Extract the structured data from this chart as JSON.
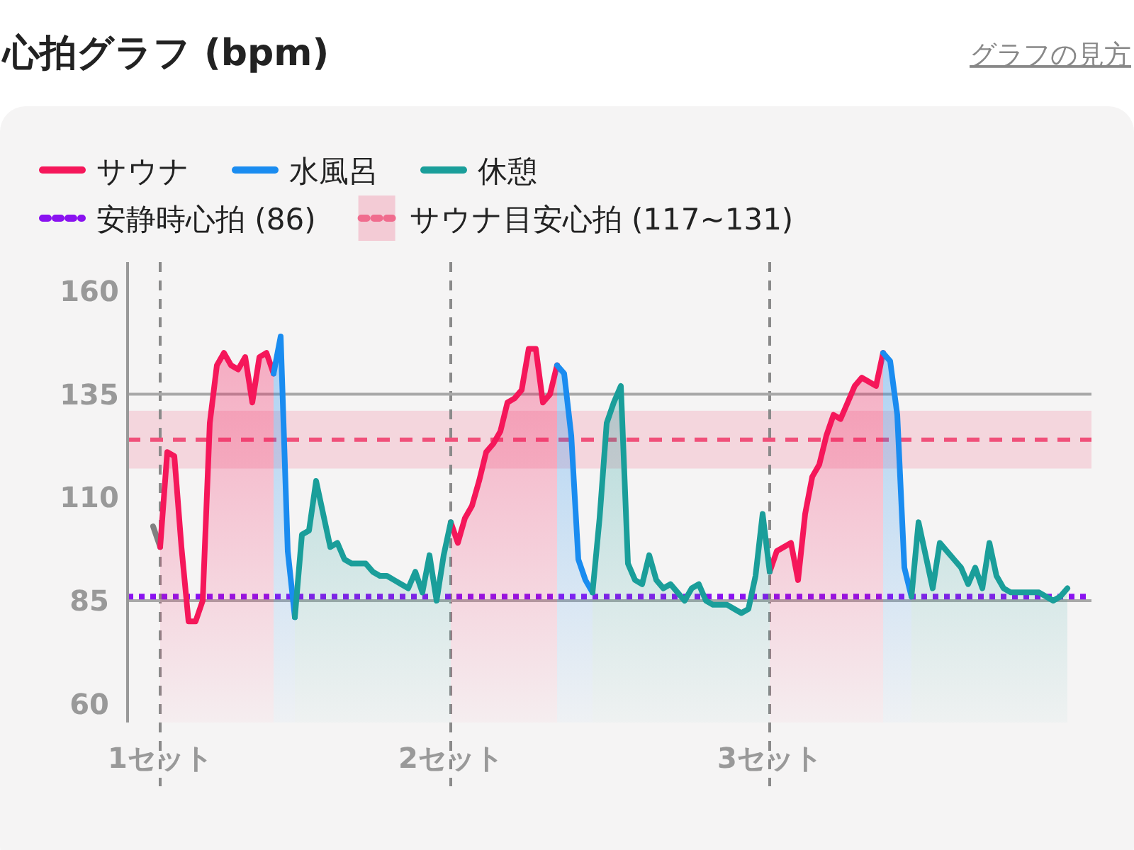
{
  "chart_data": {
    "type": "area",
    "title": "心拍グラフ (bpm)",
    "annotations": [
      "グラフの見方"
    ],
    "categories": [
      null,
      "1セット",
      null,
      null,
      null,
      null,
      null,
      null,
      null,
      null,
      null,
      null,
      null,
      null,
      null,
      null,
      null,
      null,
      null,
      null,
      null,
      null,
      null,
      null,
      null,
      null,
      null,
      null,
      null,
      null,
      null,
      null,
      null,
      null,
      null,
      null,
      null,
      null,
      null,
      null,
      null,
      null,
      "2セット",
      null,
      null,
      null,
      null,
      null,
      null,
      null,
      null,
      null,
      null,
      null,
      null,
      null,
      null,
      null,
      null,
      null,
      null,
      null,
      null,
      null,
      null,
      null,
      null,
      null,
      null,
      null,
      null,
      null,
      null,
      null,
      null,
      null,
      null,
      null,
      null,
      null,
      null,
      null,
      null,
      null,
      null,
      null,
      null,
      "3セット",
      null,
      null,
      null,
      null,
      null,
      null,
      null,
      null,
      null,
      null,
      null,
      null,
      null,
      null,
      null,
      null,
      null,
      null,
      null,
      null,
      null,
      null,
      null,
      null,
      null,
      null,
      null,
      null,
      null,
      null,
      null,
      null,
      null,
      null,
      null,
      null,
      null,
      null,
      null,
      null,
      null,
      null
    ],
    "series": [
      {
        "type": "line",
        "color": "#808080",
        "values": [
          103,
          98,
          null,
          null,
          null,
          null,
          null,
          null,
          null,
          null,
          null,
          null,
          null,
          null,
          null,
          null,
          null,
          null,
          null,
          null,
          null,
          null,
          null,
          null,
          null,
          null,
          null,
          null,
          null,
          null,
          null,
          null,
          null,
          null,
          null,
          null,
          null,
          null,
          null,
          null,
          null,
          null,
          null,
          null,
          null,
          null,
          null,
          null,
          null,
          null,
          null,
          null,
          null,
          null,
          null,
          null,
          null,
          null,
          null,
          null,
          null,
          null,
          null,
          null,
          null,
          null,
          null,
          null,
          null,
          null,
          null,
          null,
          null,
          null,
          null,
          null,
          null,
          null,
          null,
          null,
          null,
          null,
          null,
          null,
          null,
          null,
          null,
          null,
          null,
          null,
          null,
          null,
          null,
          null,
          null,
          null,
          null,
          null,
          null,
          null,
          null,
          null,
          null,
          null,
          null,
          null,
          null,
          null,
          null,
          null,
          null,
          null,
          null,
          null,
          null,
          null,
          null,
          null,
          null,
          null,
          null,
          null,
          null,
          null,
          null,
          null,
          null,
          null,
          null,
          null
        ]
      },
      {
        "name": "サウナ",
        "color": "#f5175a",
        "values": [
          null,
          98,
          121,
          120,
          98,
          80,
          80,
          85,
          128,
          142,
          145,
          142,
          141,
          144,
          133,
          144,
          145,
          140,
          null,
          null,
          null,
          null,
          null,
          null,
          null,
          null,
          null,
          null,
          null,
          null,
          null,
          null,
          null,
          null,
          null,
          null,
          null,
          null,
          null,
          null,
          null,
          null,
          104,
          99,
          105,
          108,
          114,
          121,
          123,
          126,
          133,
          134,
          136,
          146,
          146,
          133,
          135,
          142,
          null,
          null,
          null,
          null,
          null,
          null,
          null,
          null,
          null,
          null,
          null,
          null,
          null,
          null,
          null,
          null,
          null,
          null,
          null,
          null,
          null,
          null,
          null,
          null,
          null,
          null,
          null,
          null,
          null,
          92,
          97,
          98,
          99,
          90,
          106,
          115,
          118,
          125,
          130,
          129,
          133,
          137,
          139,
          138,
          137,
          145,
          null,
          null,
          null,
          null,
          null,
          null,
          null,
          null,
          null,
          null,
          null,
          null,
          null,
          null,
          null,
          null,
          null,
          null,
          null,
          null,
          null,
          null,
          null,
          null,
          null,
          null
        ]
      },
      {
        "name": "水風呂",
        "color": "#1a8cf0",
        "values": [
          null,
          null,
          null,
          null,
          null,
          null,
          null,
          null,
          null,
          null,
          null,
          null,
          null,
          null,
          null,
          null,
          null,
          140,
          149,
          97,
          81,
          null,
          null,
          null,
          null,
          null,
          null,
          null,
          null,
          null,
          null,
          null,
          null,
          null,
          null,
          null,
          null,
          null,
          null,
          null,
          null,
          null,
          null,
          null,
          null,
          null,
          null,
          null,
          null,
          null,
          null,
          null,
          null,
          null,
          null,
          null,
          null,
          142,
          140,
          125,
          95,
          90,
          87,
          null,
          null,
          null,
          null,
          null,
          null,
          null,
          null,
          null,
          null,
          null,
          null,
          null,
          null,
          null,
          null,
          null,
          null,
          null,
          null,
          null,
          null,
          null,
          null,
          null,
          null,
          null,
          null,
          null,
          null,
          null,
          null,
          null,
          null,
          null,
          null,
          null,
          null,
          null,
          null,
          145,
          143,
          130,
          93,
          86,
          null,
          null,
          null,
          null,
          null,
          null,
          null,
          null,
          null,
          null,
          null,
          null,
          null,
          null,
          null,
          null,
          null,
          null,
          null,
          null,
          null,
          null
        ]
      },
      {
        "name": "休憩",
        "color": "#1a9e9a",
        "values": [
          null,
          null,
          null,
          null,
          null,
          null,
          null,
          null,
          null,
          null,
          null,
          null,
          null,
          null,
          null,
          null,
          null,
          null,
          null,
          null,
          81,
          101,
          102,
          114,
          106,
          98,
          99,
          95,
          94,
          94,
          94,
          92,
          91,
          91,
          90,
          89,
          88,
          92,
          87,
          96,
          85,
          96,
          104,
          null,
          null,
          null,
          null,
          null,
          null,
          null,
          null,
          null,
          null,
          null,
          null,
          null,
          null,
          null,
          null,
          null,
          null,
          null,
          87,
          105,
          128,
          133,
          137,
          94,
          90,
          89,
          96,
          90,
          88,
          89,
          87,
          85,
          88,
          89,
          85,
          84,
          84,
          84,
          83,
          82,
          83,
          91,
          106,
          92,
          null,
          null,
          null,
          null,
          null,
          null,
          null,
          null,
          null,
          null,
          null,
          null,
          null,
          null,
          null,
          null,
          null,
          null,
          null,
          86,
          104,
          96,
          88,
          99,
          97,
          95,
          93,
          89,
          93,
          88,
          99,
          91,
          88,
          87,
          87,
          87,
          87,
          87,
          86,
          85,
          86,
          88
        ]
      }
    ],
    "ylim": [
      55.5,
      167
    ],
    "yticks": [
      60,
      85,
      110,
      135,
      160
    ],
    "grid": "x",
    "legend": "top left",
    "ref_lines": [
      {
        "axis": "y",
        "value": 135,
        "color": "#a8a8a8",
        "line_style": "solid"
      },
      {
        "axis": "y",
        "value": 85,
        "color": "#a8a8a8",
        "line_style": "solid"
      },
      {
        "axis": "y",
        "value": 124,
        "color": "#f0507a",
        "line_style": "dashed"
      },
      {
        "axis": "y",
        "value": 86,
        "label": "安静時心拍 (86)",
        "color": "#8a12f0",
        "line_style": "dotted"
      }
    ],
    "bands": [
      {
        "axis": "y",
        "from": 117,
        "to": 131,
        "label": "サウナ目安心拍 (117~131)",
        "color": "#f06c8e"
      }
    ]
  }
}
